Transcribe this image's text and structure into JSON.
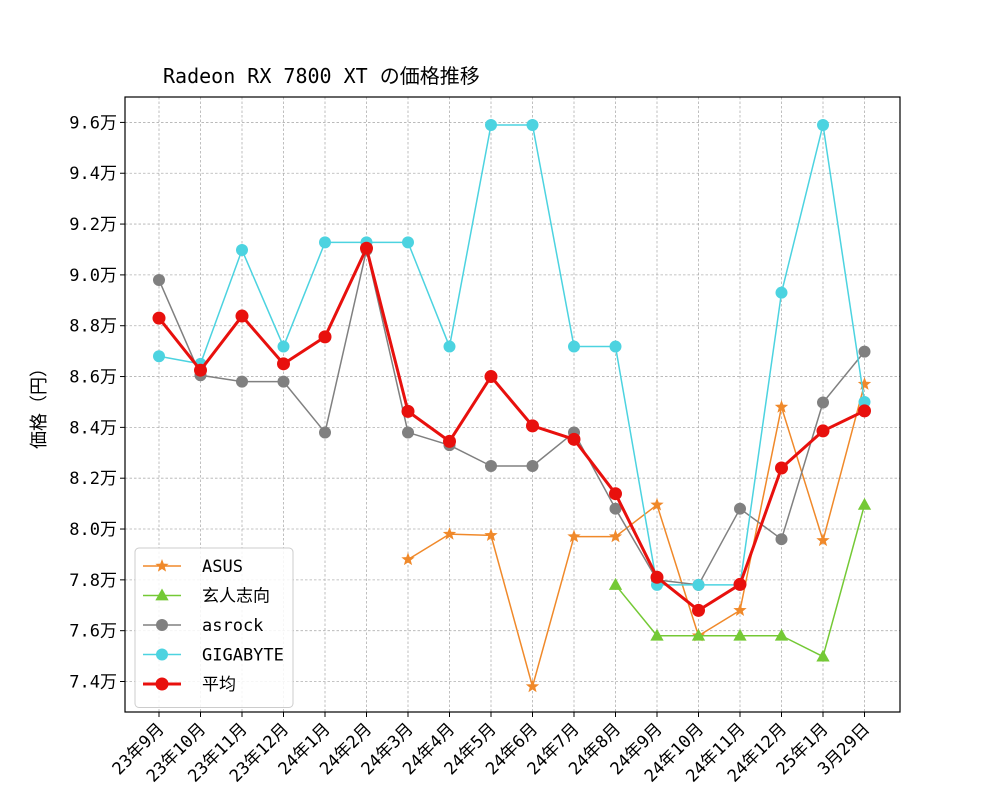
{
  "chart_data": {
    "type": "line",
    "title": "Radeon RX 7800 XT の価格推移",
    "xlabel": "",
    "ylabel": "価格（円）",
    "categories": [
      "23年9月",
      "23年10月",
      "23年11月",
      "23年12月",
      "24年1月",
      "24年2月",
      "24年3月",
      "24年4月",
      "24年5月",
      "24年6月",
      "24年7月",
      "24年8月",
      "24年9月",
      "24年10月",
      "24年11月",
      "24年12月",
      "25年1月",
      "3月29日"
    ],
    "ylim": [
      72800,
      97000
    ],
    "yticks": [
      74000,
      76000,
      78000,
      80000,
      82000,
      84000,
      86000,
      88000,
      90000,
      92000,
      94000,
      96000
    ],
    "ytick_labels": [
      "7.4万",
      "7.6万",
      "7.8万",
      "8.0万",
      "8.2万",
      "8.4万",
      "8.6万",
      "8.8万",
      "9.0万",
      "9.2万",
      "9.4万",
      "9.6万"
    ],
    "grid": true,
    "legend_position": "lower-left",
    "series": [
      {
        "name": "ASUS",
        "color": "#f0892a",
        "marker": "star",
        "width": 1.5,
        "values": [
          null,
          null,
          null,
          null,
          null,
          null,
          78800,
          79800,
          79750,
          73800,
          79700,
          79700,
          80950,
          75800,
          76800,
          84800,
          79550,
          85700
        ]
      },
      {
        "name": "玄人志向",
        "color": "#74c935",
        "marker": "triangle",
        "width": 1.5,
        "values": [
          null,
          null,
          null,
          null,
          null,
          null,
          null,
          null,
          null,
          null,
          null,
          77800,
          75800,
          75800,
          75800,
          75800,
          74980,
          80950
        ]
      },
      {
        "name": "asrock",
        "color": "#808080",
        "marker": "circle",
        "width": 1.5,
        "values": [
          89800,
          86050,
          85800,
          85800,
          83800,
          90980,
          83800,
          83300,
          82480,
          82480,
          83800,
          80800,
          78000,
          77800,
          80800,
          79600,
          84980,
          86980
        ]
      },
      {
        "name": "GIGABYTE",
        "color": "#4cd3e0",
        "marker": "circle",
        "width": 1.5,
        "values": [
          86800,
          86500,
          90980,
          87180,
          91280,
          91280,
          91280,
          87180,
          95900,
          95900,
          87180,
          87180,
          77800,
          77800,
          77800,
          89300,
          95900,
          85000
        ]
      },
      {
        "name": "平均",
        "color": "#e8100d",
        "marker": "circle",
        "width": 3,
        "values": [
          88300,
          86250,
          88380,
          86500,
          87560,
          91050,
          84630,
          83450,
          86000,
          84060,
          83530,
          81390,
          78100,
          76800,
          77820,
          82400,
          83860,
          84650
        ]
      }
    ]
  }
}
